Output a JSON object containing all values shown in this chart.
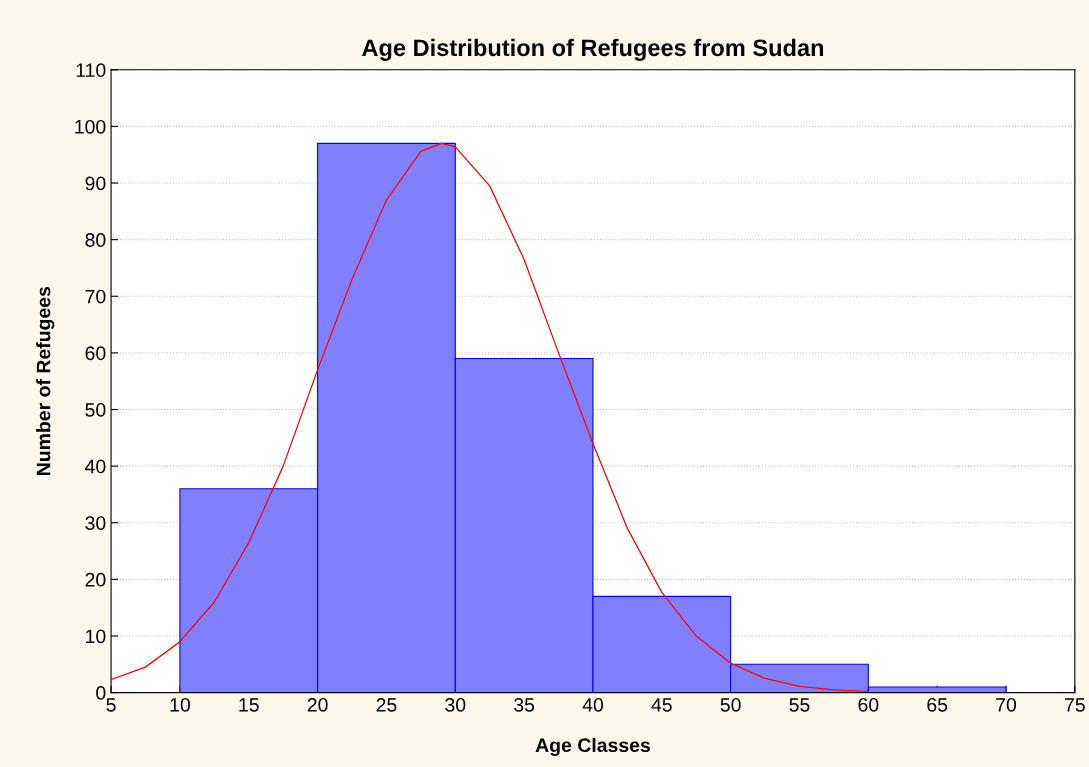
{
  "chart_data": {
    "type": "histogram",
    "title": "Age Distribution of Refugees from Sudan",
    "xlabel": "Age Classes",
    "ylabel": "Number of Refugees",
    "bins": [
      10,
      20,
      30,
      40,
      50,
      60,
      70
    ],
    "values": [
      36,
      97,
      59,
      17,
      5,
      1
    ],
    "color": "#8080ff",
    "series": [
      {
        "type": "line",
        "color": "#ff0000",
        "x": [
          5,
          7.5,
          10,
          12.5,
          15,
          17.5,
          20,
          22.5,
          25,
          27.5,
          29,
          30,
          32.5,
          35,
          37.5,
          40,
          42.5,
          45,
          47.5,
          50,
          52.5,
          55,
          57.5,
          60
        ],
        "values": [
          2.3,
          4.5,
          9,
          16,
          26.5,
          40,
          57,
          73,
          87,
          95.6,
          97,
          96.4,
          89.5,
          76.5,
          60,
          44,
          29,
          17.7,
          10,
          5.2,
          2.5,
          1.1,
          0.5,
          0.2
        ]
      }
    ],
    "xlim": [
      5,
      75
    ],
    "xticks": [
      5,
      10,
      15,
      20,
      25,
      30,
      35,
      40,
      45,
      50,
      55,
      60,
      65,
      70,
      75
    ],
    "ylim": [
      0,
      110
    ],
    "yticks": [
      0,
      10,
      20,
      30,
      40,
      50,
      60,
      70,
      80,
      90,
      100,
      110
    ],
    "grid": "y",
    "legend": false
  }
}
